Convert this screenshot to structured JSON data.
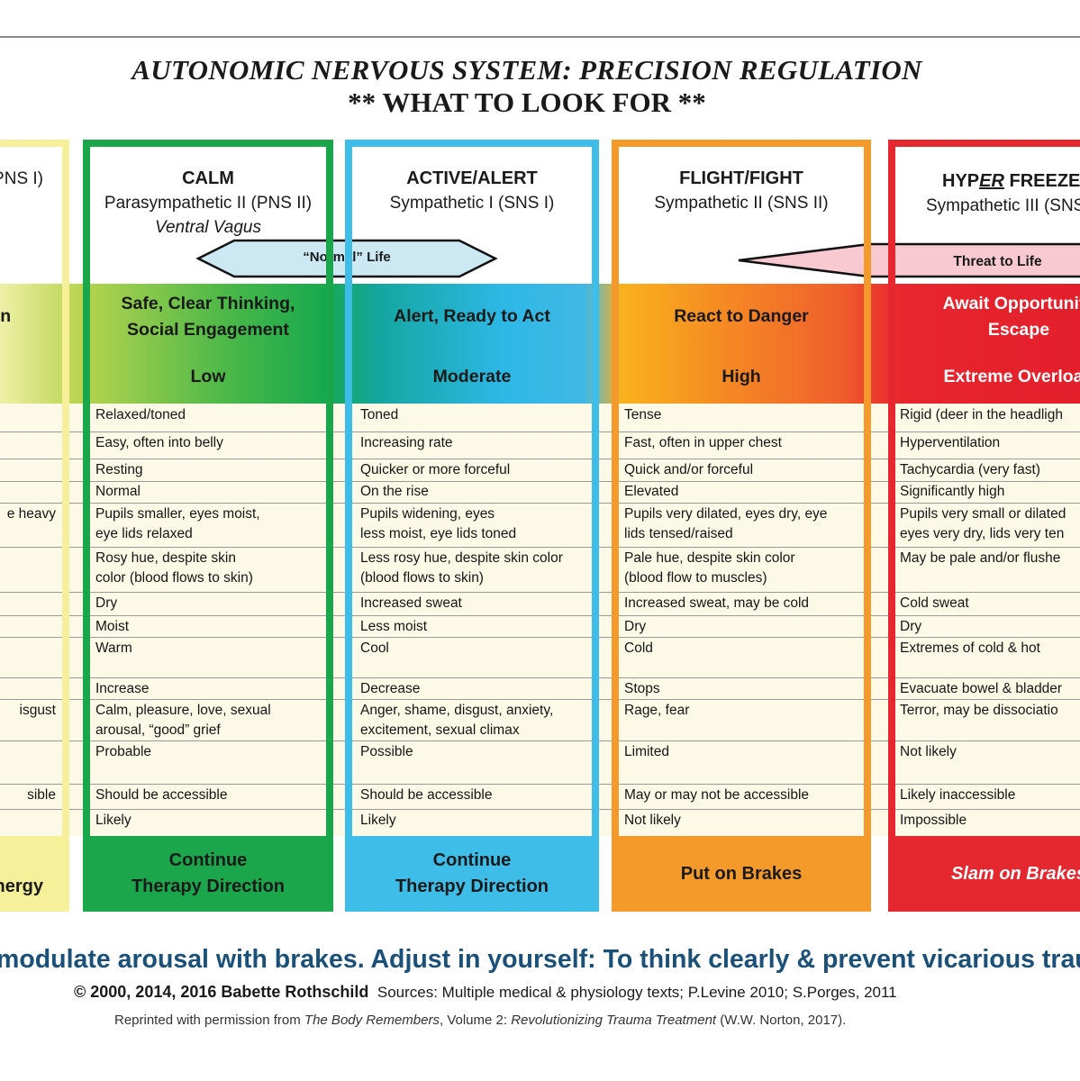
{
  "header": {
    "title": "AUTONOMIC NERVOUS SYSTEM: PRECISION REGULATION",
    "subtitle": "** WHAT TO LOOK FOR **"
  },
  "arrows": {
    "normal_life": "“Normal” Life",
    "threat_to_life": "Threat to Life"
  },
  "colors": {
    "left_partial": "#f6f09a",
    "calm": "#1ba64b",
    "active_alert": "#3fbde9",
    "flight_fight": "#f39a2a",
    "hyper_freeze": "#e52730",
    "message": "#1b5079"
  },
  "columns": [
    {
      "key": "left_partial",
      "title": "",
      "system": "PNS I)",
      "subsystem": "",
      "state": "ion",
      "arousal": "",
      "cells": [
        "",
        "",
        "",
        "",
        "e heavy",
        "",
        "",
        "",
        "",
        "",
        "isgust",
        "",
        "sible",
        ""
      ],
      "footer": "\nhergy"
    },
    {
      "key": "calm",
      "title": "CALM",
      "system": "Parasympathetic II (PNS II)",
      "subsystem": "Ventral Vagus",
      "state": "Safe, Clear Thinking,\nSocial Engagement",
      "arousal": "Low",
      "cells": [
        "Relaxed/toned",
        "Easy, often into belly",
        "Resting",
        "Normal",
        "Pupils smaller, eyes moist,\neye lids relaxed",
        "Rosy hue, despite skin\ncolor (blood flows to skin)",
        "Dry",
        "Moist",
        "Warm",
        "Increase",
        "Calm, pleasure, love, sexual\narousal, “good” grief",
        "Probable",
        "Should be accessible",
        "Likely"
      ],
      "footer": "Continue\nTherapy Direction"
    },
    {
      "key": "active_alert",
      "title": "ACTIVE/ALERT",
      "system": "Sympathetic I (SNS I)",
      "subsystem": "",
      "state": "Alert, Ready to Act",
      "arousal": "Moderate",
      "cells": [
        "Toned",
        "Increasing rate",
        "Quicker or more forceful",
        "On the rise",
        "Pupils widening, eyes\nless moist, eye lids toned",
        "Less rosy hue, despite skin color\n(blood flows to skin)",
        "Increased sweat",
        "Less moist",
        "Cool",
        "Decrease",
        "Anger, shame, disgust, anxiety,\nexcitement, sexual climax",
        "Possible",
        "Should be accessible",
        "Likely"
      ],
      "footer": "Continue\nTherapy Direction"
    },
    {
      "key": "flight_fight",
      "title": "FLIGHT/FIGHT",
      "system": "Sympathetic II (SNS II)",
      "subsystem": "",
      "state": "React to Danger",
      "arousal": "High",
      "cells": [
        "Tense",
        "Fast, often in upper chest",
        "Quick and/or forceful",
        "Elevated",
        "Pupils very dilated, eyes dry, eye\nlids tensed/raised",
        "Pale hue, despite skin color\n(blood flow to muscles)",
        "Increased sweat, may be cold",
        "Dry",
        "Cold",
        "Stops",
        "Rage, fear",
        "Limited",
        "May or may not be accessible",
        "Not likely"
      ],
      "footer": "Put on Brakes"
    },
    {
      "key": "hyper_freeze",
      "title_pre": "HYP",
      "title_em": "ER",
      "title_post": " FREEZE",
      "system": "Sympathetic III (SNS",
      "subsystem": "",
      "state": "Await Opportunity\nEscape",
      "arousal": "Extreme Overload",
      "cells": [
        "Rigid (deer in the headligh",
        "Hyperventilation",
        "Tachycardia (very fast)",
        "Significantly high",
        "Pupils very small or dilated\neyes very dry, lids very ten",
        "May be pale and/or flushe",
        "Cold sweat",
        "Dry",
        "Extremes of cold & hot",
        "Evacuate bowel & bladder",
        "Terror, may be dissociatio",
        "Not likely",
        "Likely inaccessible",
        "Impossible"
      ],
      "footer": "Slam on Brakes"
    }
  ],
  "footer": {
    "message": "modulate arousal with brakes. Adjust in yourself: To think clearly & prevent vicarious traum",
    "copyright": "© 2000, 2014, 2016 Babette Rothschild",
    "sources": "Sources: Multiple medical & physiology texts; P.Levine 2010; S.Porges, 2011",
    "reprint_pre": "Reprinted with permission from ",
    "reprint_book": "The Body Remembers",
    "reprint_mid": ", Volume 2: ",
    "reprint_subtitle": "Revolutionizing Trauma Treatment",
    "reprint_post": " (W.W. Norton, 2017)."
  }
}
